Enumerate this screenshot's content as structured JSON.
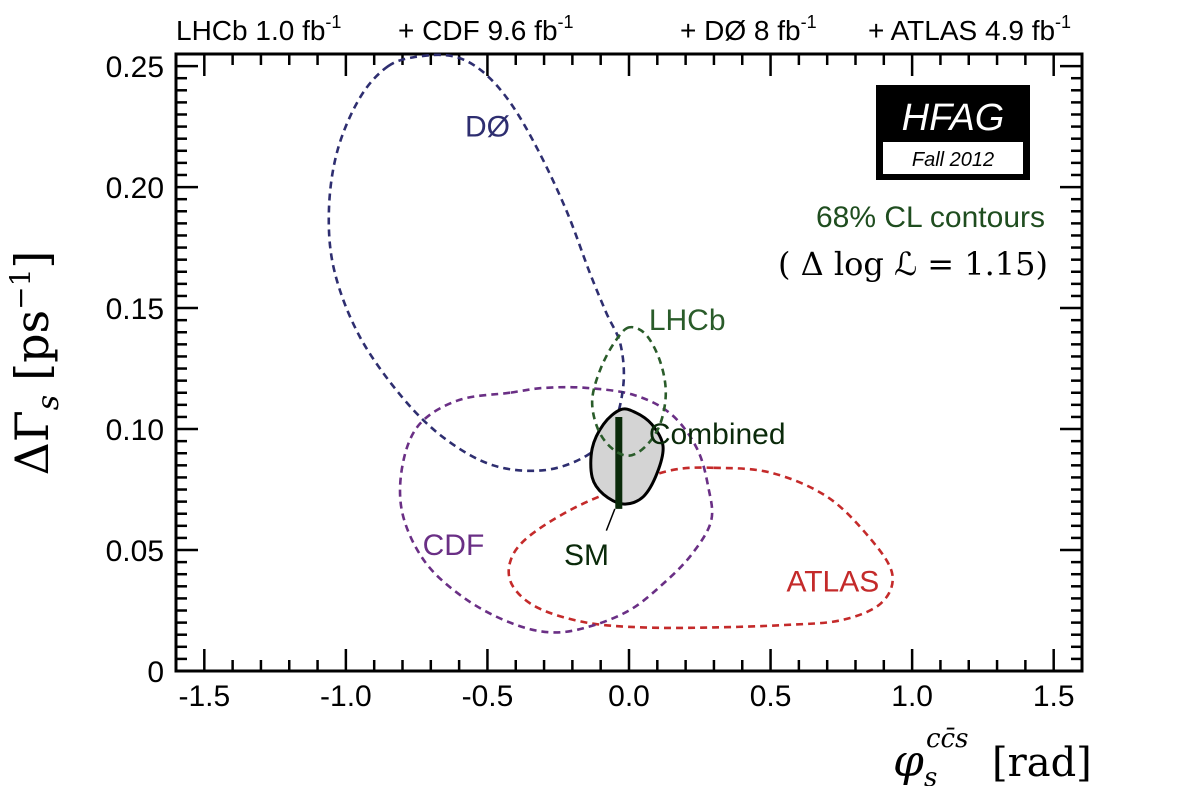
{
  "chart_data": {
    "type": "line",
    "title_parts": [
      {
        "text": "LHCb  1.0 fb",
        "sup": "-1"
      },
      {
        "text": " + CDF  9.6 fb",
        "sup": "-1"
      },
      {
        "text": "+ DØ  8 fb",
        "sup": "-1"
      },
      {
        "text": " + ATLAS  4.9 fb",
        "sup": "-1"
      }
    ],
    "xlabel": {
      "main": "φ",
      "sub": "s",
      "sup": "cc̄s",
      "unit": "[rad]"
    },
    "ylabel": {
      "main": "ΔΓ",
      "sub": "s",
      "unit": "[ps",
      "unit_sup": "−1",
      "unit_close": "]"
    },
    "xlim": [
      -1.6,
      1.6
    ],
    "ylim": [
      0,
      0.255
    ],
    "x_ticks": [
      -1.5,
      -1.0,
      -0.5,
      0.0,
      0.5,
      1.0,
      1.5
    ],
    "x_tick_labels": [
      "-1.5",
      "-1.0",
      "-0.5",
      "0.0",
      "0.5",
      "1.0",
      "1.5"
    ],
    "y_ticks": [
      0,
      0.05,
      0.1,
      0.15,
      0.2,
      0.25
    ],
    "y_tick_labels": [
      "0",
      "0.05",
      "0.10",
      "0.15",
      "0.20",
      "0.25"
    ],
    "annotations": {
      "cl_line1": "68% CL contours",
      "cl_line2": "( Δ log ℒ = 1.15)"
    },
    "logo": {
      "main": "HFAG",
      "sub": "Fall 2012"
    },
    "series": [
      {
        "name": "DØ",
        "color": "#2e2e70",
        "style": "dashed",
        "label_pos": [
          -0.5,
          0.225
        ],
        "points": [
          [
            -0.85,
            0.25
          ],
          [
            -0.95,
            0.237
          ],
          [
            -1.03,
            0.215
          ],
          [
            -1.06,
            0.19
          ],
          [
            -1.04,
            0.165
          ],
          [
            -0.95,
            0.138
          ],
          [
            -0.8,
            0.113
          ],
          [
            -0.65,
            0.096
          ],
          [
            -0.48,
            0.085
          ],
          [
            -0.3,
            0.083
          ],
          [
            -0.15,
            0.089
          ],
          [
            -0.06,
            0.1
          ],
          [
            -0.02,
            0.118
          ],
          [
            -0.03,
            0.135
          ],
          [
            -0.08,
            0.148
          ],
          [
            -0.14,
            0.165
          ],
          [
            -0.22,
            0.19
          ],
          [
            -0.32,
            0.215
          ],
          [
            -0.42,
            0.235
          ],
          [
            -0.52,
            0.248
          ],
          [
            -0.62,
            0.254
          ],
          [
            -0.74,
            0.254
          ]
        ]
      },
      {
        "name": "LHCb",
        "color": "#2a5c2a",
        "style": "dashed",
        "label_pos": [
          0.25,
          0.145
        ],
        "points": [
          [
            0.0,
            0.142
          ],
          [
            -0.05,
            0.136
          ],
          [
            -0.1,
            0.125
          ],
          [
            -0.13,
            0.112
          ],
          [
            -0.11,
            0.1
          ],
          [
            -0.06,
            0.092
          ],
          [
            0.0,
            0.089
          ],
          [
            0.06,
            0.093
          ],
          [
            0.11,
            0.102
          ],
          [
            0.13,
            0.115
          ],
          [
            0.11,
            0.128
          ],
          [
            0.06,
            0.139
          ]
        ]
      },
      {
        "name": "CDF",
        "color": "#6a2f85",
        "style": "dashed",
        "label_pos": [
          -0.62,
          0.052
        ],
        "points": [
          [
            -0.42,
            0.115
          ],
          [
            -0.6,
            0.112
          ],
          [
            -0.74,
            0.102
          ],
          [
            -0.8,
            0.085
          ],
          [
            -0.8,
            0.065
          ],
          [
            -0.72,
            0.045
          ],
          [
            -0.58,
            0.03
          ],
          [
            -0.42,
            0.02
          ],
          [
            -0.28,
            0.016
          ],
          [
            -0.15,
            0.018
          ],
          [
            0.0,
            0.025
          ],
          [
            0.12,
            0.036
          ],
          [
            0.22,
            0.048
          ],
          [
            0.29,
            0.062
          ],
          [
            0.28,
            0.076
          ],
          [
            0.24,
            0.092
          ],
          [
            0.15,
            0.106
          ],
          [
            0.02,
            0.114
          ],
          [
            -0.15,
            0.117
          ],
          [
            -0.3,
            0.117
          ]
        ]
      },
      {
        "name": "ATLAS",
        "color": "#c42a2a",
        "style": "dashed",
        "label_pos": [
          0.72,
          0.037
        ],
        "points": [
          [
            0.3,
            0.084
          ],
          [
            0.5,
            0.082
          ],
          [
            0.7,
            0.072
          ],
          [
            0.85,
            0.055
          ],
          [
            0.93,
            0.04
          ],
          [
            0.89,
            0.028
          ],
          [
            0.75,
            0.021
          ],
          [
            0.55,
            0.019
          ],
          [
            0.3,
            0.018
          ],
          [
            0.05,
            0.018
          ],
          [
            -0.15,
            0.02
          ],
          [
            -0.32,
            0.026
          ],
          [
            -0.41,
            0.035
          ],
          [
            -0.42,
            0.045
          ],
          [
            -0.36,
            0.055
          ],
          [
            -0.2,
            0.067
          ],
          [
            0.0,
            0.077
          ],
          [
            0.15,
            0.083
          ]
        ]
      },
      {
        "name": "Combined",
        "color": "#000000",
        "fill": "#d4d4d4",
        "style": "solid",
        "label_pos": [
          0.07,
          0.098
        ],
        "points": [
          [
            -0.03,
            0.108
          ],
          [
            -0.09,
            0.102
          ],
          [
            -0.13,
            0.092
          ],
          [
            -0.13,
            0.08
          ],
          [
            -0.09,
            0.073
          ],
          [
            -0.02,
            0.069
          ],
          [
            0.05,
            0.072
          ],
          [
            0.1,
            0.082
          ],
          [
            0.12,
            0.093
          ],
          [
            0.08,
            0.102
          ],
          [
            0.02,
            0.107
          ]
        ]
      }
    ],
    "sm": {
      "label": "SM",
      "x": -0.036,
      "y_range": [
        0.067,
        0.105
      ],
      "label_pos": [
        -0.15,
        0.048
      ],
      "pointer_from": [
        -0.08,
        0.058
      ],
      "pointer_to": [
        -0.05,
        0.067
      ]
    }
  }
}
